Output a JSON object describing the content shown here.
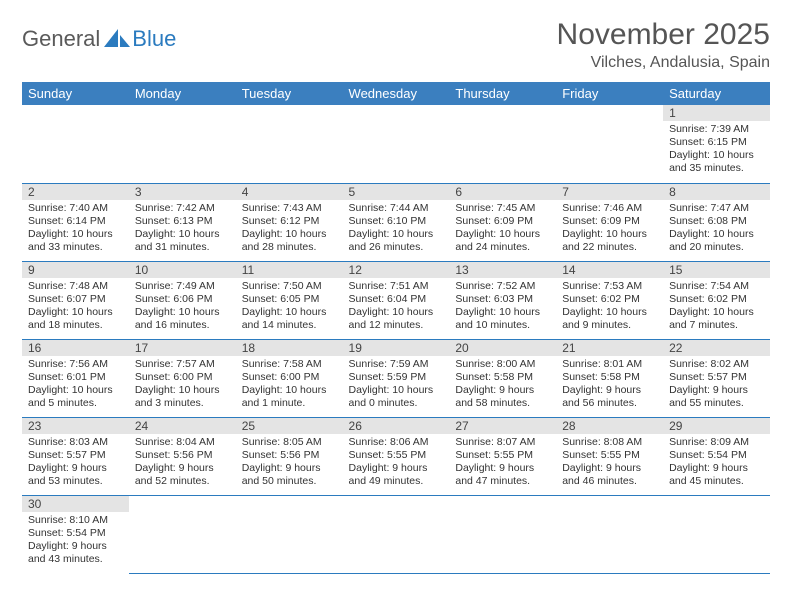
{
  "logo": {
    "text1": "General",
    "text2": "Blue"
  },
  "title": "November 2025",
  "location": "Vilches, Andalusia, Spain",
  "colors": {
    "header_bg": "#3b7fbf",
    "header_fg": "#ffffff",
    "daynum_bg": "#e4e4e4",
    "rule": "#2b7bbf",
    "logo_gray": "#5a5a5a",
    "logo_blue": "#2b7bbf"
  },
  "weekdays": [
    "Sunday",
    "Monday",
    "Tuesday",
    "Wednesday",
    "Thursday",
    "Friday",
    "Saturday"
  ],
  "weeks": [
    [
      null,
      null,
      null,
      null,
      null,
      null,
      {
        "n": "1",
        "sr": "Sunrise: 7:39 AM",
        "ss": "Sunset: 6:15 PM",
        "dl": "Daylight: 10 hours and 35 minutes."
      }
    ],
    [
      {
        "n": "2",
        "sr": "Sunrise: 7:40 AM",
        "ss": "Sunset: 6:14 PM",
        "dl": "Daylight: 10 hours and 33 minutes."
      },
      {
        "n": "3",
        "sr": "Sunrise: 7:42 AM",
        "ss": "Sunset: 6:13 PM",
        "dl": "Daylight: 10 hours and 31 minutes."
      },
      {
        "n": "4",
        "sr": "Sunrise: 7:43 AM",
        "ss": "Sunset: 6:12 PM",
        "dl": "Daylight: 10 hours and 28 minutes."
      },
      {
        "n": "5",
        "sr": "Sunrise: 7:44 AM",
        "ss": "Sunset: 6:10 PM",
        "dl": "Daylight: 10 hours and 26 minutes."
      },
      {
        "n": "6",
        "sr": "Sunrise: 7:45 AM",
        "ss": "Sunset: 6:09 PM",
        "dl": "Daylight: 10 hours and 24 minutes."
      },
      {
        "n": "7",
        "sr": "Sunrise: 7:46 AM",
        "ss": "Sunset: 6:09 PM",
        "dl": "Daylight: 10 hours and 22 minutes."
      },
      {
        "n": "8",
        "sr": "Sunrise: 7:47 AM",
        "ss": "Sunset: 6:08 PM",
        "dl": "Daylight: 10 hours and 20 minutes."
      }
    ],
    [
      {
        "n": "9",
        "sr": "Sunrise: 7:48 AM",
        "ss": "Sunset: 6:07 PM",
        "dl": "Daylight: 10 hours and 18 minutes."
      },
      {
        "n": "10",
        "sr": "Sunrise: 7:49 AM",
        "ss": "Sunset: 6:06 PM",
        "dl": "Daylight: 10 hours and 16 minutes."
      },
      {
        "n": "11",
        "sr": "Sunrise: 7:50 AM",
        "ss": "Sunset: 6:05 PM",
        "dl": "Daylight: 10 hours and 14 minutes."
      },
      {
        "n": "12",
        "sr": "Sunrise: 7:51 AM",
        "ss": "Sunset: 6:04 PM",
        "dl": "Daylight: 10 hours and 12 minutes."
      },
      {
        "n": "13",
        "sr": "Sunrise: 7:52 AM",
        "ss": "Sunset: 6:03 PM",
        "dl": "Daylight: 10 hours and 10 minutes."
      },
      {
        "n": "14",
        "sr": "Sunrise: 7:53 AM",
        "ss": "Sunset: 6:02 PM",
        "dl": "Daylight: 10 hours and 9 minutes."
      },
      {
        "n": "15",
        "sr": "Sunrise: 7:54 AM",
        "ss": "Sunset: 6:02 PM",
        "dl": "Daylight: 10 hours and 7 minutes."
      }
    ],
    [
      {
        "n": "16",
        "sr": "Sunrise: 7:56 AM",
        "ss": "Sunset: 6:01 PM",
        "dl": "Daylight: 10 hours and 5 minutes."
      },
      {
        "n": "17",
        "sr": "Sunrise: 7:57 AM",
        "ss": "Sunset: 6:00 PM",
        "dl": "Daylight: 10 hours and 3 minutes."
      },
      {
        "n": "18",
        "sr": "Sunrise: 7:58 AM",
        "ss": "Sunset: 6:00 PM",
        "dl": "Daylight: 10 hours and 1 minute."
      },
      {
        "n": "19",
        "sr": "Sunrise: 7:59 AM",
        "ss": "Sunset: 5:59 PM",
        "dl": "Daylight: 10 hours and 0 minutes."
      },
      {
        "n": "20",
        "sr": "Sunrise: 8:00 AM",
        "ss": "Sunset: 5:58 PM",
        "dl": "Daylight: 9 hours and 58 minutes."
      },
      {
        "n": "21",
        "sr": "Sunrise: 8:01 AM",
        "ss": "Sunset: 5:58 PM",
        "dl": "Daylight: 9 hours and 56 minutes."
      },
      {
        "n": "22",
        "sr": "Sunrise: 8:02 AM",
        "ss": "Sunset: 5:57 PM",
        "dl": "Daylight: 9 hours and 55 minutes."
      }
    ],
    [
      {
        "n": "23",
        "sr": "Sunrise: 8:03 AM",
        "ss": "Sunset: 5:57 PM",
        "dl": "Daylight: 9 hours and 53 minutes."
      },
      {
        "n": "24",
        "sr": "Sunrise: 8:04 AM",
        "ss": "Sunset: 5:56 PM",
        "dl": "Daylight: 9 hours and 52 minutes."
      },
      {
        "n": "25",
        "sr": "Sunrise: 8:05 AM",
        "ss": "Sunset: 5:56 PM",
        "dl": "Daylight: 9 hours and 50 minutes."
      },
      {
        "n": "26",
        "sr": "Sunrise: 8:06 AM",
        "ss": "Sunset: 5:55 PM",
        "dl": "Daylight: 9 hours and 49 minutes."
      },
      {
        "n": "27",
        "sr": "Sunrise: 8:07 AM",
        "ss": "Sunset: 5:55 PM",
        "dl": "Daylight: 9 hours and 47 minutes."
      },
      {
        "n": "28",
        "sr": "Sunrise: 8:08 AM",
        "ss": "Sunset: 5:55 PM",
        "dl": "Daylight: 9 hours and 46 minutes."
      },
      {
        "n": "29",
        "sr": "Sunrise: 8:09 AM",
        "ss": "Sunset: 5:54 PM",
        "dl": "Daylight: 9 hours and 45 minutes."
      }
    ],
    [
      {
        "n": "30",
        "sr": "Sunrise: 8:10 AM",
        "ss": "Sunset: 5:54 PM",
        "dl": "Daylight: 9 hours and 43 minutes."
      },
      null,
      null,
      null,
      null,
      null,
      null
    ]
  ]
}
